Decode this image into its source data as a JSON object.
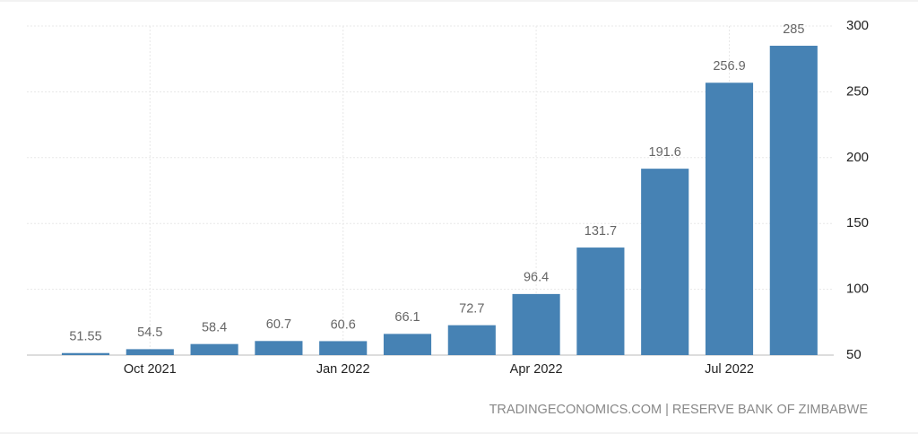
{
  "chart_data": {
    "type": "bar",
    "categories": [
      null,
      "Oct 2021",
      null,
      null,
      "Jan 2022",
      null,
      null,
      "Apr 2022",
      null,
      null,
      "Jul 2022",
      null
    ],
    "values": [
      51.55,
      54.5,
      58.4,
      60.7,
      60.6,
      66.1,
      72.7,
      96.4,
      131.7,
      191.6,
      256.9,
      285
    ],
    "color": "#4682b4",
    "ylim": [
      50,
      300
    ],
    "yticks": [
      50,
      100,
      150,
      200,
      250,
      300
    ],
    "grid": true,
    "source": "TRADINGECONOMICS.COM | RESERVE BANK OF ZIMBABWE"
  }
}
